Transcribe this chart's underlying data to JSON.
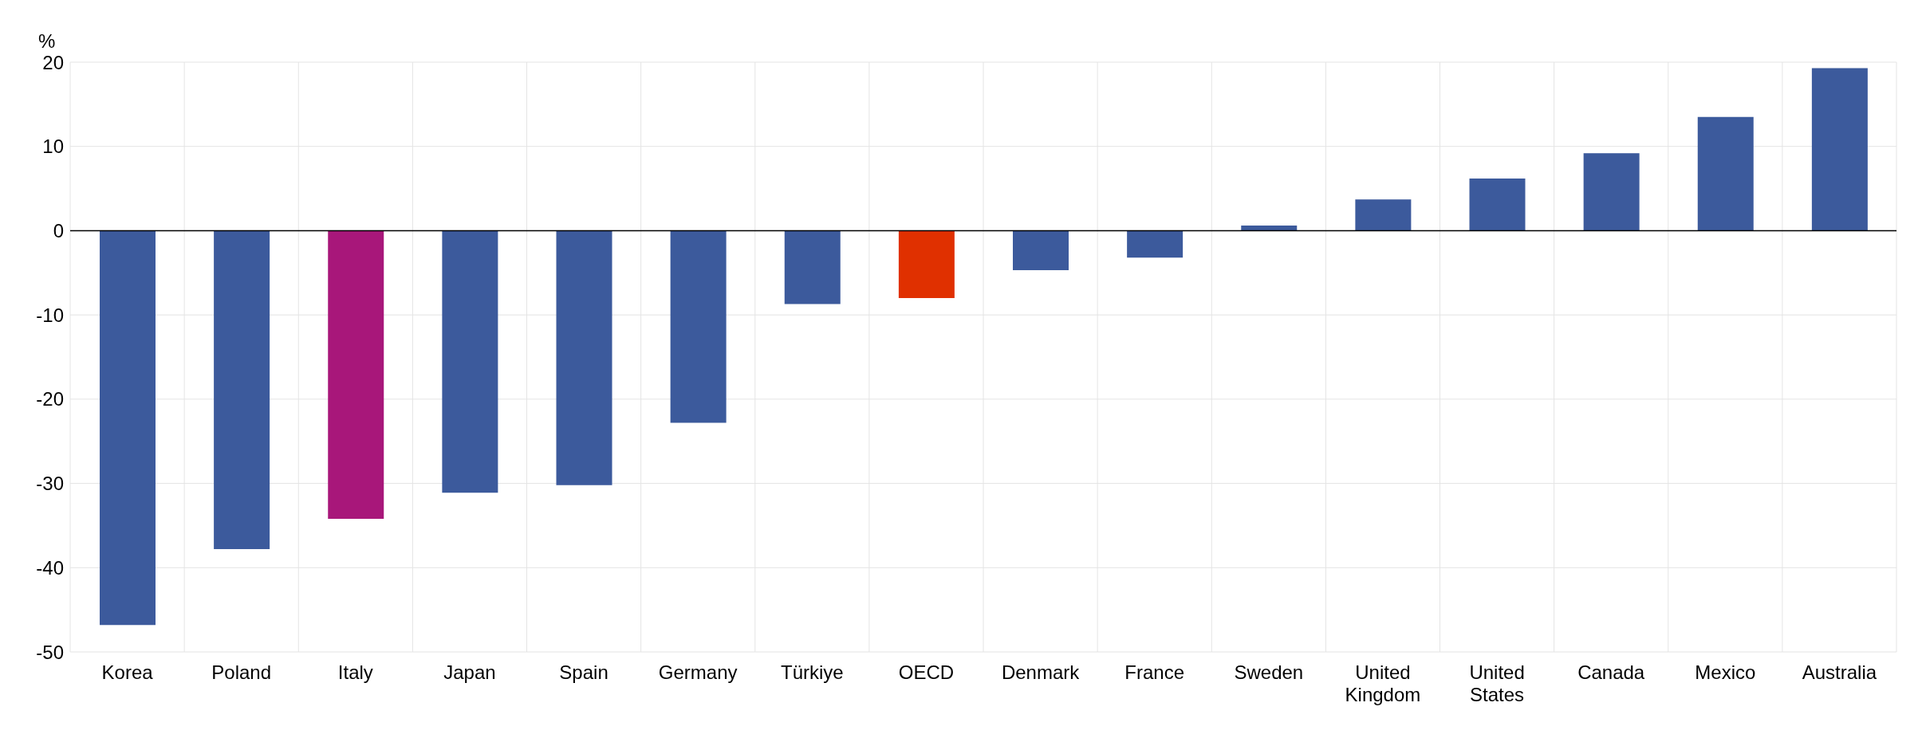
{
  "chart_data": {
    "type": "bar",
    "ylabel": "%",
    "categories": [
      "Korea",
      "Poland",
      "Italy",
      "Japan",
      "Spain",
      "Germany",
      "Türkiye",
      "OECD",
      "Denmark",
      "France",
      "Sweden",
      "United Kingdom",
      "United States",
      "Canada",
      "Mexico",
      "Australia"
    ],
    "values": [
      -46.8,
      -37.8,
      -34.2,
      -31.1,
      -30.2,
      -22.8,
      -8.7,
      -8.0,
      -4.7,
      -3.2,
      0.6,
      3.7,
      6.2,
      9.2,
      13.5,
      19.3
    ],
    "colors": [
      "#3c5a9c",
      "#3c5a9c",
      "#a8177a",
      "#3c5a9c",
      "#3c5a9c",
      "#3c5a9c",
      "#3c5a9c",
      "#e03000",
      "#3c5a9c",
      "#3c5a9c",
      "#3c5a9c",
      "#3c5a9c",
      "#3c5a9c",
      "#3c5a9c",
      "#3c5a9c",
      "#3c5a9c"
    ],
    "ylim": [
      -50,
      20
    ],
    "yticks": [
      -50,
      -40,
      -30,
      -20,
      -10,
      0,
      10,
      20
    ],
    "grid": true
  }
}
